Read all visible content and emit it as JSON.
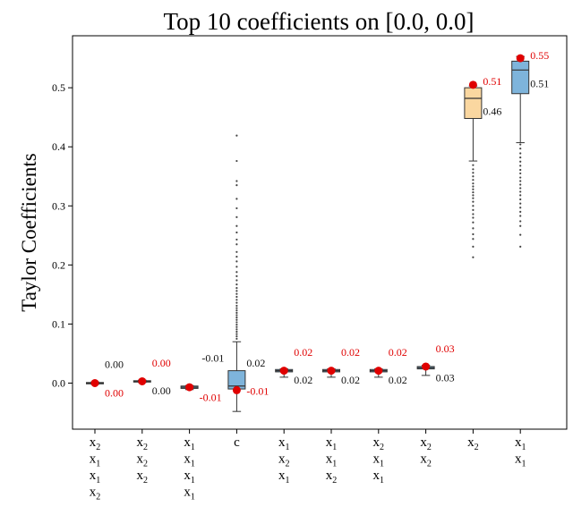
{
  "chart_data": {
    "type": "box",
    "title": "Top 10 coefficients on [0.0, 0.0]",
    "xlabel": "",
    "ylabel": "Taylor Coefficients",
    "ylim": [
      -0.078,
      0.588
    ],
    "yticks": [
      "0.0",
      "0.1",
      "0.2",
      "0.3",
      "0.4",
      "0.5"
    ],
    "ytick_values": [
      0.0,
      0.1,
      0.2,
      0.3,
      0.4,
      0.5
    ],
    "grid": false,
    "legend": "none",
    "colors": {
      "box_blue": "#7eb4db",
      "box_orange": "#fad7a0",
      "box_edge": "#333333",
      "marker": "#e00000",
      "highlight_label": "#e00000",
      "median_label": "#111111"
    },
    "categories": [
      {
        "label_lines": [
          [
            "x",
            "2"
          ],
          [
            "x",
            "1"
          ],
          [
            "x",
            "1"
          ],
          [
            "x",
            "2"
          ]
        ],
        "q1": -0.001,
        "median": 0.0,
        "q3": 0.001,
        "whisker_low": -0.002,
        "whisker_high": 0.002,
        "marker": 0.0,
        "box_color": "blue",
        "outliers": [],
        "label_top": "0.00",
        "label_top_value": 0.032,
        "label_top_color": "black",
        "label_bottom": "0.00",
        "label_bottom_value": -0.017,
        "label_bottom_color": "red"
      },
      {
        "label_lines": [
          [
            "x",
            "2"
          ],
          [
            "x",
            "2"
          ],
          [
            "x",
            "2"
          ]
        ],
        "q1": 0.002,
        "median": 0.003,
        "q3": 0.004,
        "whisker_low": 0.001,
        "whisker_high": 0.005,
        "marker": 0.003,
        "box_color": "blue",
        "outliers": [],
        "label_top": "0.00",
        "label_top_value": 0.034,
        "label_top_color": "red",
        "label_bottom": "0.00",
        "label_bottom_value": -0.013,
        "label_bottom_color": "black"
      },
      {
        "label_lines": [
          [
            "x",
            "1"
          ],
          [
            "x",
            "1"
          ],
          [
            "x",
            "1"
          ],
          [
            "x",
            "1"
          ]
        ],
        "q1": -0.009,
        "median": -0.007,
        "q3": -0.005,
        "whisker_low": -0.011,
        "whisker_high": -0.004,
        "marker": -0.007,
        "box_color": "blue",
        "outliers": [],
        "label_top": "",
        "label_top_value": 0.0,
        "label_top_color": "black",
        "label_bottom": "-0.01",
        "label_bottom_value": -0.024,
        "label_bottom_color": "red"
      },
      {
        "label_lines": [
          [
            "c",
            ""
          ]
        ],
        "q1": -0.01,
        "median": -0.005,
        "q3": 0.021,
        "whisker_low": -0.048,
        "whisker_high": 0.07,
        "marker": -0.012,
        "box_color": "blue",
        "outliers": [
          0.419,
          0.376,
          0.342,
          0.335,
          0.312,
          0.296,
          0.281,
          0.266,
          0.255,
          0.243,
          0.235,
          0.222,
          0.214,
          0.206,
          0.197,
          0.188,
          0.181,
          0.174,
          0.167,
          0.161,
          0.156,
          0.151,
          0.146,
          0.141,
          0.136,
          0.131,
          0.127,
          0.123,
          0.119,
          0.115,
          0.111,
          0.107,
          0.103,
          0.099,
          0.095,
          0.091,
          0.087,
          0.083,
          0.079,
          0.075
        ],
        "label_top": "0.02",
        "label_top_value": 0.034,
        "label_top_color": "black",
        "label_bottom": "-0.01",
        "label_bottom_value": -0.014,
        "label_bottom_color": "red",
        "label_left": "-0.01",
        "label_left_value": 0.024,
        "label_left_color": "black"
      },
      {
        "label_lines": [
          [
            "x",
            "1"
          ],
          [
            "x",
            "2"
          ],
          [
            "x",
            "1"
          ]
        ],
        "q1": 0.019,
        "median": 0.021,
        "q3": 0.023,
        "whisker_low": 0.01,
        "whisker_high": 0.024,
        "marker": 0.021,
        "box_color": "blue",
        "outliers": [],
        "label_top": "0.02",
        "label_top_value": 0.052,
        "label_top_color": "red",
        "label_bottom": "0.02",
        "label_bottom_value": 0.005,
        "label_bottom_color": "black"
      },
      {
        "label_lines": [
          [
            "x",
            "1"
          ],
          [
            "x",
            "1"
          ],
          [
            "x",
            "2"
          ]
        ],
        "q1": 0.019,
        "median": 0.021,
        "q3": 0.023,
        "whisker_low": 0.01,
        "whisker_high": 0.024,
        "marker": 0.021,
        "box_color": "blue",
        "outliers": [],
        "label_top": "0.02",
        "label_top_value": 0.052,
        "label_top_color": "red",
        "label_bottom": "0.02",
        "label_bottom_value": 0.005,
        "label_bottom_color": "black"
      },
      {
        "label_lines": [
          [
            "x",
            "2"
          ],
          [
            "x",
            "1"
          ],
          [
            "x",
            "1"
          ]
        ],
        "q1": 0.019,
        "median": 0.021,
        "q3": 0.023,
        "whisker_low": 0.01,
        "whisker_high": 0.024,
        "marker": 0.021,
        "box_color": "blue",
        "outliers": [],
        "label_top": "0.02",
        "label_top_value": 0.052,
        "label_top_color": "red",
        "label_bottom": "0.02",
        "label_bottom_value": 0.005,
        "label_bottom_color": "black"
      },
      {
        "label_lines": [
          [
            "x",
            "2"
          ],
          [
            "x",
            "2"
          ]
        ],
        "q1": 0.024,
        "median": 0.026,
        "q3": 0.028,
        "whisker_low": 0.013,
        "whisker_high": 0.03,
        "marker": 0.028,
        "box_color": "blue",
        "outliers": [],
        "label_top": "0.03",
        "label_top_value": 0.058,
        "label_top_color": "red",
        "label_bottom": "0.03",
        "label_bottom_value": 0.009,
        "label_bottom_color": "black"
      },
      {
        "label_lines": [
          [
            "x",
            "2"
          ]
        ],
        "q1": 0.448,
        "median": 0.482,
        "q3": 0.5,
        "whisker_low": 0.376,
        "whisker_high": 0.503,
        "marker": 0.505,
        "box_color": "orange",
        "outliers": [
          0.369,
          0.362,
          0.356,
          0.35,
          0.344,
          0.338,
          0.333,
          0.328,
          0.323,
          0.318,
          0.313,
          0.307,
          0.3,
          0.293,
          0.286,
          0.28,
          0.272,
          0.262,
          0.252,
          0.244,
          0.231,
          0.213
        ],
        "label_top": "0.51",
        "label_top_value": 0.511,
        "label_top_color": "red",
        "label_bottom": "0.46",
        "label_bottom_value": 0.46,
        "label_bottom_color": "black"
      },
      {
        "label_lines": [
          [
            "x",
            "1"
          ],
          [
            "x",
            "1"
          ]
        ],
        "q1": 0.49,
        "median": 0.53,
        "q3": 0.545,
        "whisker_low": 0.407,
        "whisker_high": 0.553,
        "marker": 0.55,
        "box_color": "blue",
        "outliers": [
          0.404,
          0.397,
          0.389,
          0.382,
          0.375,
          0.368,
          0.361,
          0.355,
          0.348,
          0.342,
          0.336,
          0.33,
          0.324,
          0.318,
          0.311,
          0.304,
          0.297,
          0.29,
          0.283,
          0.274,
          0.266,
          0.251,
          0.231
        ],
        "label_top": "0.55",
        "label_top_value": 0.555,
        "label_top_color": "red",
        "label_bottom": "0.51",
        "label_bottom_value": 0.507,
        "label_bottom_color": "black"
      }
    ]
  }
}
